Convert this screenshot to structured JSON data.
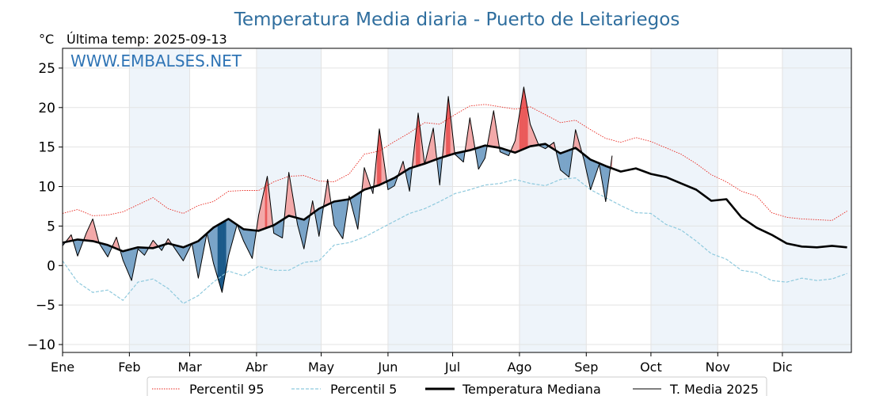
{
  "header": {
    "title": "Temperatura Media diaria - Puerto de Leitariegos",
    "unit": "°C",
    "last_temp": "Última temp: 2025-09-13",
    "watermark": "WWW.EMBALSES.NET"
  },
  "colors": {
    "title": "#2f6e9e",
    "p95": "#e8261e",
    "p5": "#8ec9dd",
    "median": "#000000",
    "media2025": "#000000",
    "above_fill": "#f3a9a9",
    "above_fill_strong": "#ea5a5a",
    "below_fill": "#7aa4c8",
    "below_fill_strong": "#1b5a8a",
    "band": "#eef4fa"
  },
  "chart_data": {
    "type": "line",
    "title": "Temperatura Media diaria - Puerto de Leitariegos",
    "ylabel": "°C",
    "ylim": [
      -11,
      27.5
    ],
    "xlim": [
      1,
      367
    ],
    "yticks": [
      -10,
      -5,
      0,
      5,
      10,
      15,
      20,
      25
    ],
    "ytick_labels": [
      "−10",
      "−5",
      "0",
      "5",
      "10",
      "15",
      "20",
      "25"
    ],
    "months": [
      "Ene",
      "Feb",
      "Mar",
      "Abr",
      "May",
      "Jun",
      "Jul",
      "Ago",
      "Sep",
      "Oct",
      "Nov",
      "Dic"
    ],
    "month_start_days": [
      1,
      32,
      60,
      91,
      121,
      152,
      182,
      213,
      244,
      274,
      305,
      335
    ],
    "shaded_months": [
      1,
      3,
      5,
      7,
      9,
      11
    ],
    "grid": true,
    "legend_placement": "bottom",
    "series": [
      {
        "name": "Percentil 95",
        "style": "dotted",
        "x": [
          1,
          8,
          15,
          22,
          29,
          36,
          43,
          50,
          57,
          64,
          71,
          78,
          85,
          92,
          99,
          106,
          113,
          120,
          127,
          134,
          141,
          148,
          155,
          162,
          169,
          176,
          183,
          190,
          197,
          204,
          211,
          218,
          225,
          232,
          239,
          246,
          253,
          260,
          267,
          274,
          281,
          288,
          295,
          302,
          309,
          316,
          323,
          330,
          337,
          344,
          351,
          358,
          365
        ],
        "values": [
          6.6,
          7.1,
          6.3,
          6.4,
          6.8,
          7.7,
          8.6,
          7.2,
          6.6,
          7.6,
          8.1,
          9.4,
          9.5,
          9.5,
          10.6,
          11.3,
          11.4,
          10.7,
          10.6,
          11.6,
          14.1,
          14.5,
          15.7,
          16.8,
          18.1,
          17.9,
          19.1,
          20.2,
          20.4,
          20.1,
          19.8,
          20.1,
          19.1,
          18.1,
          18.4,
          17.2,
          16.1,
          15.6,
          16.2,
          15.7,
          14.9,
          14.1,
          12.9,
          11.5,
          10.6,
          9.4,
          8.8,
          6.7,
          6.1,
          5.9,
          5.8,
          5.7,
          6.9
        ]
      },
      {
        "name": "Percentil 5",
        "style": "dashed",
        "x": [
          1,
          8,
          15,
          22,
          29,
          36,
          43,
          50,
          57,
          64,
          71,
          78,
          85,
          92,
          99,
          106,
          113,
          120,
          127,
          134,
          141,
          148,
          155,
          162,
          169,
          176,
          183,
          190,
          197,
          204,
          211,
          218,
          225,
          232,
          239,
          246,
          253,
          260,
          267,
          274,
          281,
          288,
          295,
          302,
          309,
          316,
          323,
          330,
          337,
          344,
          351,
          358,
          365
        ],
        "values": [
          0.6,
          -2.1,
          -3.4,
          -3.1,
          -4.4,
          -2.1,
          -1.7,
          -2.9,
          -4.8,
          -3.8,
          -2.1,
          -0.7,
          -1.3,
          -0.1,
          -0.6,
          -0.6,
          0.4,
          0.6,
          2.6,
          2.9,
          3.6,
          4.6,
          5.6,
          6.6,
          7.2,
          8.1,
          9.1,
          9.6,
          10.2,
          10.4,
          10.9,
          10.4,
          10.1,
          10.9,
          11.1,
          9.6,
          8.6,
          7.6,
          6.7,
          6.6,
          5.2,
          4.5,
          3.1,
          1.5,
          0.8,
          -0.6,
          -0.9,
          -1.9,
          -2.1,
          -1.6,
          -1.9,
          -1.7,
          -1.0
        ]
      },
      {
        "name": "Temperatura Mediana",
        "style": "solid-bold",
        "x": [
          1,
          8,
          15,
          22,
          29,
          36,
          43,
          50,
          57,
          64,
          71,
          78,
          85,
          92,
          99,
          106,
          113,
          120,
          127,
          134,
          141,
          148,
          155,
          162,
          169,
          176,
          183,
          190,
          197,
          204,
          211,
          218,
          225,
          232,
          239,
          246,
          253,
          260,
          267,
          274,
          281,
          288,
          295,
          302,
          309,
          316,
          323,
          330,
          337,
          344,
          351,
          358,
          365
        ],
        "values": [
          2.9,
          3.3,
          3.1,
          2.6,
          1.8,
          2.3,
          2.2,
          2.8,
          2.3,
          3.1,
          4.8,
          5.9,
          4.6,
          4.4,
          5.1,
          6.3,
          5.8,
          7.2,
          8.1,
          8.4,
          9.6,
          10.2,
          11.1,
          12.3,
          12.9,
          13.6,
          14.2,
          14.6,
          15.2,
          14.9,
          14.3,
          15.1,
          15.4,
          14.2,
          14.9,
          13.4,
          12.6,
          11.9,
          12.3,
          11.6,
          11.2,
          10.4,
          9.6,
          8.2,
          8.4,
          6.1,
          4.8,
          3.9,
          2.8,
          2.4,
          2.3,
          2.5,
          2.3
        ]
      },
      {
        "name": "T. Media 2025",
        "style": "solid-thin",
        "x": [
          1,
          5,
          8,
          12,
          15,
          18,
          22,
          26,
          29,
          33,
          36,
          39,
          43,
          47,
          50,
          54,
          57,
          61,
          64,
          68,
          71,
          75,
          78,
          82,
          85,
          89,
          92,
          96,
          99,
          103,
          106,
          110,
          113,
          117,
          120,
          124,
          127,
          131,
          134,
          138,
          141,
          145,
          148,
          152,
          155,
          159,
          162,
          166,
          169,
          173,
          176,
          180,
          183,
          187,
          190,
          194,
          197,
          201,
          204,
          208,
          211,
          215,
          218,
          222,
          225,
          229,
          232,
          236,
          239,
          243,
          246,
          250,
          253,
          256
        ],
        "values": [
          2.5,
          3.9,
          1.2,
          4.1,
          5.9,
          2.8,
          1.1,
          3.6,
          0.7,
          -1.9,
          2.1,
          1.3,
          3.2,
          1.9,
          3.4,
          1.8,
          0.6,
          2.8,
          -1.6,
          4.1,
          0.3,
          -3.4,
          1.2,
          5.2,
          3.1,
          0.9,
          6.4,
          11.3,
          4.1,
          3.5,
          11.8,
          5.2,
          2.1,
          8.2,
          3.7,
          10.9,
          5.1,
          3.4,
          8.8,
          4.6,
          12.4,
          9.1,
          17.3,
          9.6,
          10.1,
          13.2,
          9.4,
          19.3,
          12.8,
          17.4,
          10.2,
          21.4,
          14.1,
          13.1,
          18.7,
          12.2,
          13.6,
          19.6,
          14.4,
          13.9,
          15.8,
          22.6,
          17.9,
          15.2,
          14.8,
          15.6,
          12.1,
          11.2,
          17.2,
          13.3,
          9.6,
          12.8,
          8.1,
          13.9
        ]
      }
    ]
  }
}
